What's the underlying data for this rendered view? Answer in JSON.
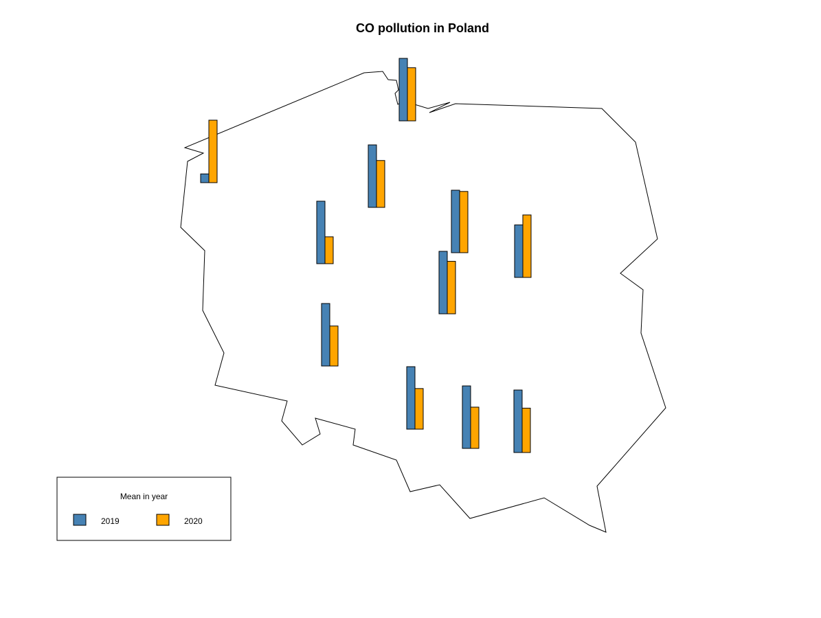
{
  "chart_data": {
    "type": "bar",
    "title": "CO pollution in Poland",
    "legend": {
      "title": "Mean in year",
      "placement": "bottom-left",
      "entries": [
        {
          "label": "2019",
          "color": "#4682B4"
        },
        {
          "label": "2020",
          "color": "#FFA500"
        }
      ]
    },
    "series": [
      {
        "name": "2019",
        "color": "#4682B4"
      },
      {
        "name": "2020",
        "color": "#FFA500"
      }
    ],
    "stations": [
      {
        "id": "north-west",
        "values": [
          0.14,
          1.0
        ]
      },
      {
        "id": "north-coast",
        "values": [
          1.0,
          0.85
        ]
      },
      {
        "id": "north",
        "values": [
          1.0,
          0.75
        ]
      },
      {
        "id": "west",
        "values": [
          1.0,
          0.43
        ]
      },
      {
        "id": "center-north",
        "values": [
          1.0,
          0.98
        ]
      },
      {
        "id": "east",
        "values": [
          0.84,
          1.0
        ]
      },
      {
        "id": "center",
        "values": [
          1.0,
          0.84
        ]
      },
      {
        "id": "south-west",
        "values": [
          1.0,
          0.64
        ]
      },
      {
        "id": "south",
        "values": [
          1.0,
          0.65
        ]
      },
      {
        "id": "south-east-1",
        "values": [
          1.0,
          0.66
        ]
      },
      {
        "id": "south-east-2",
        "values": [
          1.0,
          0.71
        ]
      }
    ]
  }
}
